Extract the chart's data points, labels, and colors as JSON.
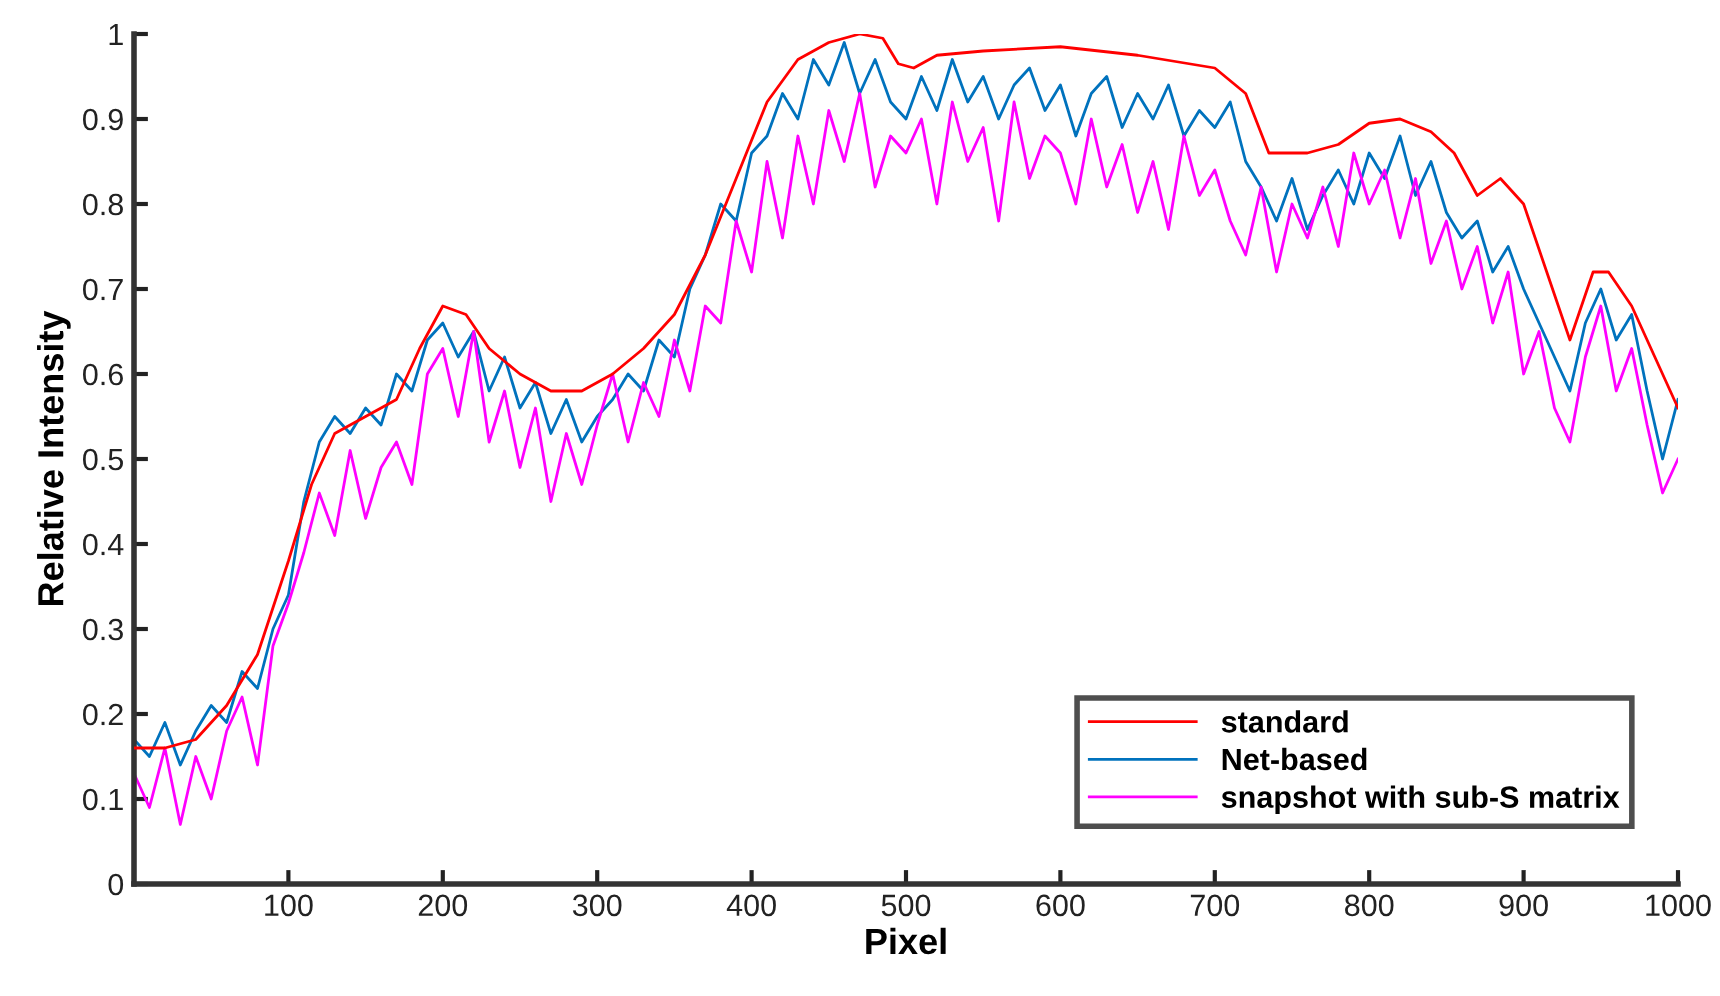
{
  "chart_data": {
    "type": "line",
    "xlabel": "Pixel",
    "ylabel": "Relative Intensity",
    "xlim": [
      0,
      1000
    ],
    "ylim": [
      0,
      1
    ],
    "xticks": [
      100,
      200,
      300,
      400,
      500,
      600,
      700,
      800,
      900,
      1000
    ],
    "yticks": [
      0,
      0.1,
      0.2,
      0.3,
      0.4,
      0.5,
      0.6,
      0.7,
      0.8,
      0.9,
      1
    ],
    "grid": false,
    "legend": "bottom right",
    "line_style": "solid",
    "series": [
      {
        "name": "standard",
        "color": "#ff0000",
        "x": [
          0,
          20,
          40,
          60,
          80,
          100,
          115,
          130,
          150,
          170,
          185,
          200,
          215,
          230,
          250,
          270,
          290,
          310,
          330,
          350,
          370,
          390,
          410,
          430,
          450,
          470,
          485,
          495,
          505,
          520,
          550,
          600,
          650,
          700,
          720,
          735,
          760,
          780,
          800,
          820,
          840,
          855,
          870,
          885,
          900,
          915,
          930,
          945,
          955,
          970,
          985,
          1000
        ],
        "values": [
          0.16,
          0.16,
          0.17,
          0.21,
          0.27,
          0.38,
          0.47,
          0.53,
          0.55,
          0.57,
          0.63,
          0.68,
          0.67,
          0.63,
          0.6,
          0.58,
          0.58,
          0.6,
          0.63,
          0.67,
          0.74,
          0.83,
          0.92,
          0.97,
          0.99,
          1.0,
          0.995,
          0.965,
          0.96,
          0.975,
          0.98,
          0.985,
          0.975,
          0.96,
          0.93,
          0.86,
          0.86,
          0.87,
          0.895,
          0.9,
          0.885,
          0.86,
          0.81,
          0.83,
          0.8,
          0.72,
          0.64,
          0.72,
          0.72,
          0.68,
          0.62,
          0.56
        ]
      },
      {
        "name": "Net-based",
        "color": "#0072bd",
        "x": [
          0,
          10,
          20,
          30,
          40,
          50,
          60,
          70,
          80,
          90,
          100,
          110,
          120,
          130,
          140,
          150,
          160,
          170,
          180,
          190,
          200,
          210,
          220,
          230,
          240,
          250,
          260,
          270,
          280,
          290,
          300,
          310,
          320,
          330,
          340,
          350,
          360,
          370,
          380,
          390,
          400,
          410,
          420,
          430,
          440,
          450,
          460,
          470,
          480,
          490,
          500,
          510,
          520,
          530,
          540,
          550,
          560,
          570,
          580,
          590,
          600,
          610,
          620,
          630,
          640,
          650,
          660,
          670,
          680,
          690,
          700,
          710,
          720,
          730,
          740,
          750,
          760,
          770,
          780,
          790,
          800,
          810,
          820,
          830,
          840,
          850,
          860,
          870,
          880,
          890,
          900,
          910,
          920,
          930,
          940,
          950,
          960,
          970,
          980,
          990,
          1000
        ],
        "values": [
          0.17,
          0.15,
          0.19,
          0.14,
          0.18,
          0.21,
          0.19,
          0.25,
          0.23,
          0.3,
          0.34,
          0.45,
          0.52,
          0.55,
          0.53,
          0.56,
          0.54,
          0.6,
          0.58,
          0.64,
          0.66,
          0.62,
          0.65,
          0.58,
          0.62,
          0.56,
          0.59,
          0.53,
          0.57,
          0.52,
          0.55,
          0.57,
          0.6,
          0.58,
          0.64,
          0.62,
          0.7,
          0.74,
          0.8,
          0.78,
          0.86,
          0.88,
          0.93,
          0.9,
          0.97,
          0.94,
          0.99,
          0.93,
          0.97,
          0.92,
          0.9,
          0.95,
          0.91,
          0.97,
          0.92,
          0.95,
          0.9,
          0.94,
          0.96,
          0.91,
          0.94,
          0.88,
          0.93,
          0.95,
          0.89,
          0.93,
          0.9,
          0.94,
          0.88,
          0.91,
          0.89,
          0.92,
          0.85,
          0.82,
          0.78,
          0.83,
          0.77,
          0.81,
          0.84,
          0.8,
          0.86,
          0.83,
          0.88,
          0.81,
          0.85,
          0.79,
          0.76,
          0.78,
          0.72,
          0.75,
          0.7,
          0.66,
          0.62,
          0.58,
          0.66,
          0.7,
          0.64,
          0.67,
          0.58,
          0.5,
          0.57
        ]
      },
      {
        "name": "snapshot with sub-S matrix",
        "color": "#ff00ff",
        "x": [
          0,
          10,
          20,
          30,
          40,
          50,
          60,
          70,
          80,
          90,
          100,
          110,
          120,
          130,
          140,
          150,
          160,
          170,
          180,
          190,
          200,
          210,
          220,
          230,
          240,
          250,
          260,
          270,
          280,
          290,
          300,
          310,
          320,
          330,
          340,
          350,
          360,
          370,
          380,
          390,
          400,
          410,
          420,
          430,
          440,
          450,
          460,
          470,
          480,
          490,
          500,
          510,
          520,
          530,
          540,
          550,
          560,
          570,
          580,
          590,
          600,
          610,
          620,
          630,
          640,
          650,
          660,
          670,
          680,
          690,
          700,
          710,
          720,
          730,
          740,
          750,
          760,
          770,
          780,
          790,
          800,
          810,
          820,
          830,
          840,
          850,
          860,
          870,
          880,
          890,
          900,
          910,
          920,
          930,
          940,
          950,
          960,
          970,
          980,
          990,
          1000
        ],
        "values": [
          0.13,
          0.09,
          0.16,
          0.07,
          0.15,
          0.1,
          0.18,
          0.22,
          0.14,
          0.28,
          0.33,
          0.39,
          0.46,
          0.41,
          0.51,
          0.43,
          0.49,
          0.52,
          0.47,
          0.6,
          0.63,
          0.55,
          0.65,
          0.52,
          0.58,
          0.49,
          0.56,
          0.45,
          0.53,
          0.47,
          0.54,
          0.6,
          0.52,
          0.59,
          0.55,
          0.64,
          0.58,
          0.68,
          0.66,
          0.78,
          0.72,
          0.85,
          0.76,
          0.88,
          0.8,
          0.91,
          0.85,
          0.93,
          0.82,
          0.88,
          0.86,
          0.9,
          0.8,
          0.92,
          0.85,
          0.89,
          0.78,
          0.92,
          0.83,
          0.88,
          0.86,
          0.8,
          0.9,
          0.82,
          0.87,
          0.79,
          0.85,
          0.77,
          0.88,
          0.81,
          0.84,
          0.78,
          0.74,
          0.82,
          0.72,
          0.8,
          0.76,
          0.82,
          0.75,
          0.86,
          0.8,
          0.84,
          0.76,
          0.83,
          0.73,
          0.78,
          0.7,
          0.75,
          0.66,
          0.72,
          0.6,
          0.65,
          0.56,
          0.52,
          0.62,
          0.68,
          0.58,
          0.63,
          0.54,
          0.46,
          0.5
        ]
      }
    ]
  }
}
